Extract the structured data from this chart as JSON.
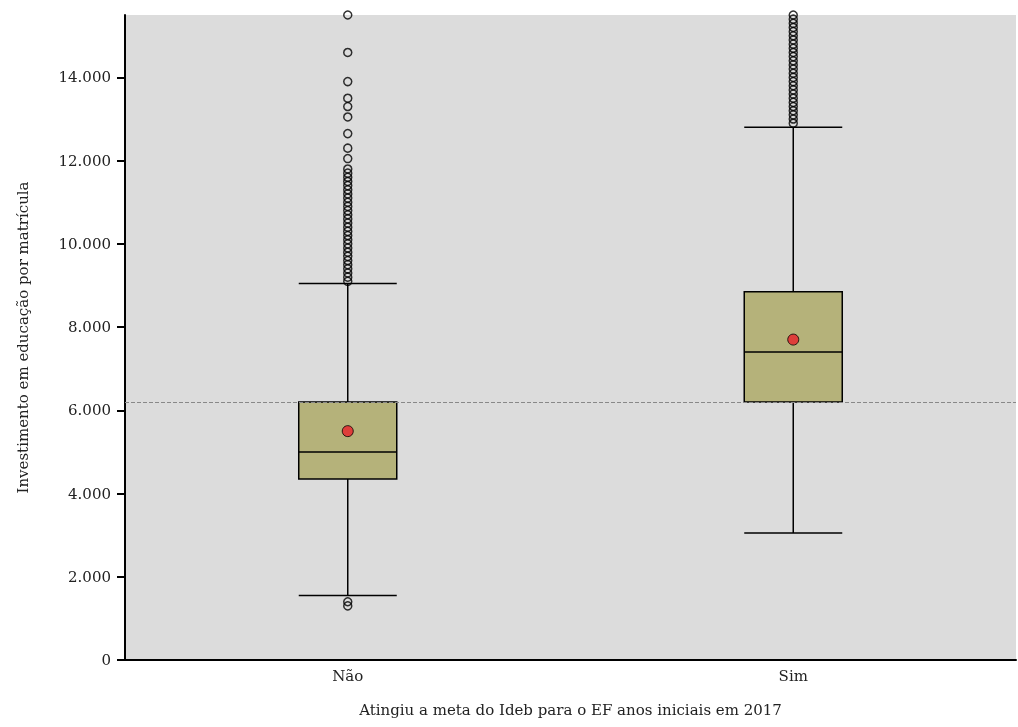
{
  "chart_data": {
    "type": "box",
    "xlabel": "Atingiu a meta do Ideb para o EF anos iniciais em 2017",
    "ylabel": "Investimento em educação por matrícula",
    "categories": [
      "Não",
      "Sim"
    ],
    "color": "#b5b27a",
    "ylim": [
      0,
      15500
    ],
    "yticks": [
      {
        "value": 0,
        "label": "0"
      },
      {
        "value": 2000,
        "label": "2.000"
      },
      {
        "value": 4000,
        "label": "4.000"
      },
      {
        "value": 6000,
        "label": "6.000"
      },
      {
        "value": 8000,
        "label": "8.000"
      },
      {
        "value": 10000,
        "label": "10.000"
      },
      {
        "value": 12000,
        "label": "12.000"
      },
      {
        "value": 14000,
        "label": "14.000"
      }
    ],
    "boxes": [
      {
        "low": 1550,
        "q1": 4350,
        "median": 5000,
        "q3": 6200,
        "high": 9050,
        "mean": 5500,
        "outliers": [
          1300,
          1400,
          9100,
          9200,
          9300,
          9400,
          9500,
          9600,
          9700,
          9800,
          9900,
          10000,
          10100,
          10200,
          10300,
          10400,
          10500,
          10600,
          10700,
          10800,
          10900,
          11000,
          11100,
          11200,
          11300,
          11400,
          11500,
          11600,
          11700,
          11800,
          12050,
          12300,
          12650,
          13050,
          13300,
          13500,
          13900,
          14600,
          15500
        ]
      },
      {
        "low": 3050,
        "q1": 6200,
        "median": 7400,
        "q3": 8850,
        "high": 12800,
        "mean": 7700,
        "outliers": [
          12900,
          13000,
          13100,
          13200,
          13300,
          13400,
          13500,
          13600,
          13700,
          13800,
          13900,
          14000,
          14100,
          14200,
          14300,
          14400,
          14500,
          14600,
          14700,
          14800,
          14900,
          15000,
          15100,
          15200,
          15300,
          15400,
          15500
        ]
      }
    ],
    "ref_lines": [
      {
        "axis": "y",
        "value": 6200,
        "color": "#888888",
        "line_style": "dashed"
      }
    ],
    "grid": false,
    "legend": false
  }
}
